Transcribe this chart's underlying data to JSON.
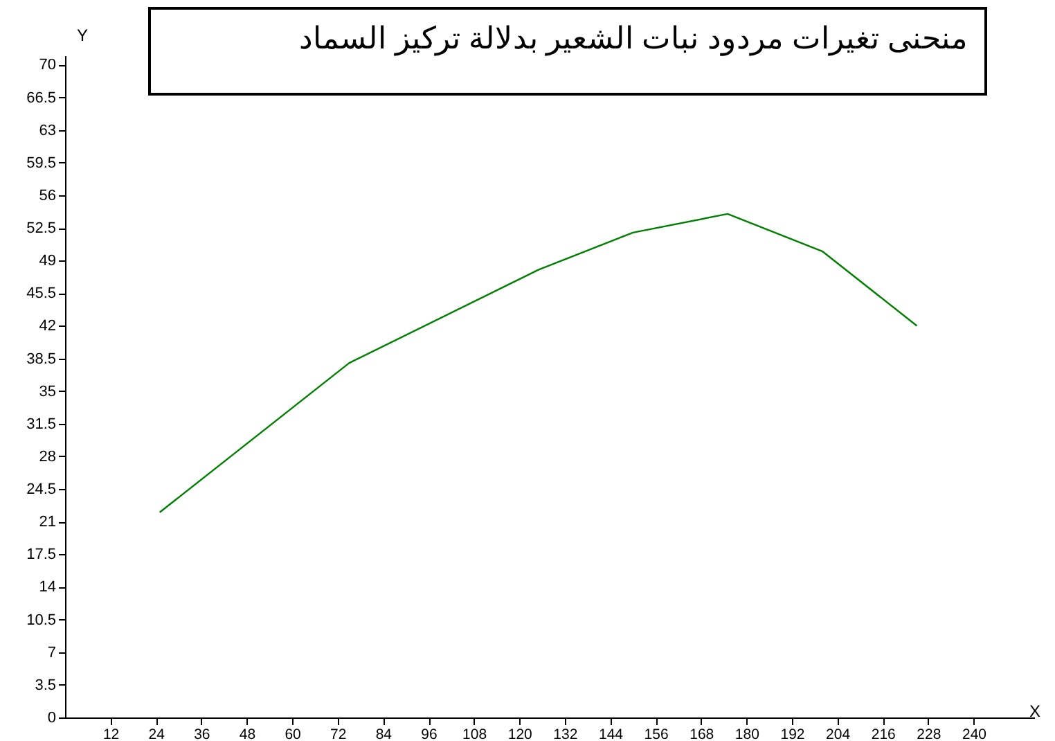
{
  "chart_data": {
    "type": "line",
    "title": "منحنى تغيرات مردود نبات الشعير بدلالة تركيز السماد",
    "xlabel": "X",
    "ylabel": "Y",
    "x": [
      25,
      75,
      125,
      150,
      175,
      200,
      225
    ],
    "series": [
      {
        "color": "#008000",
        "values": [
          22,
          38,
          48,
          52,
          54,
          50,
          42
        ]
      }
    ],
    "xlim": [
      0,
      256
    ],
    "ylim": [
      0,
      71
    ],
    "xticks": [
      12,
      24,
      36,
      48,
      60,
      72,
      84,
      96,
      108,
      120,
      132,
      144,
      156,
      168,
      180,
      192,
      204,
      216,
      228,
      240
    ],
    "yticks": [
      0,
      3.5,
      7,
      10.5,
      14,
      17.5,
      21,
      24.5,
      28,
      31.5,
      35,
      38.5,
      42,
      45.5,
      49,
      52.5,
      56,
      59.5,
      63,
      66.5,
      70
    ]
  }
}
